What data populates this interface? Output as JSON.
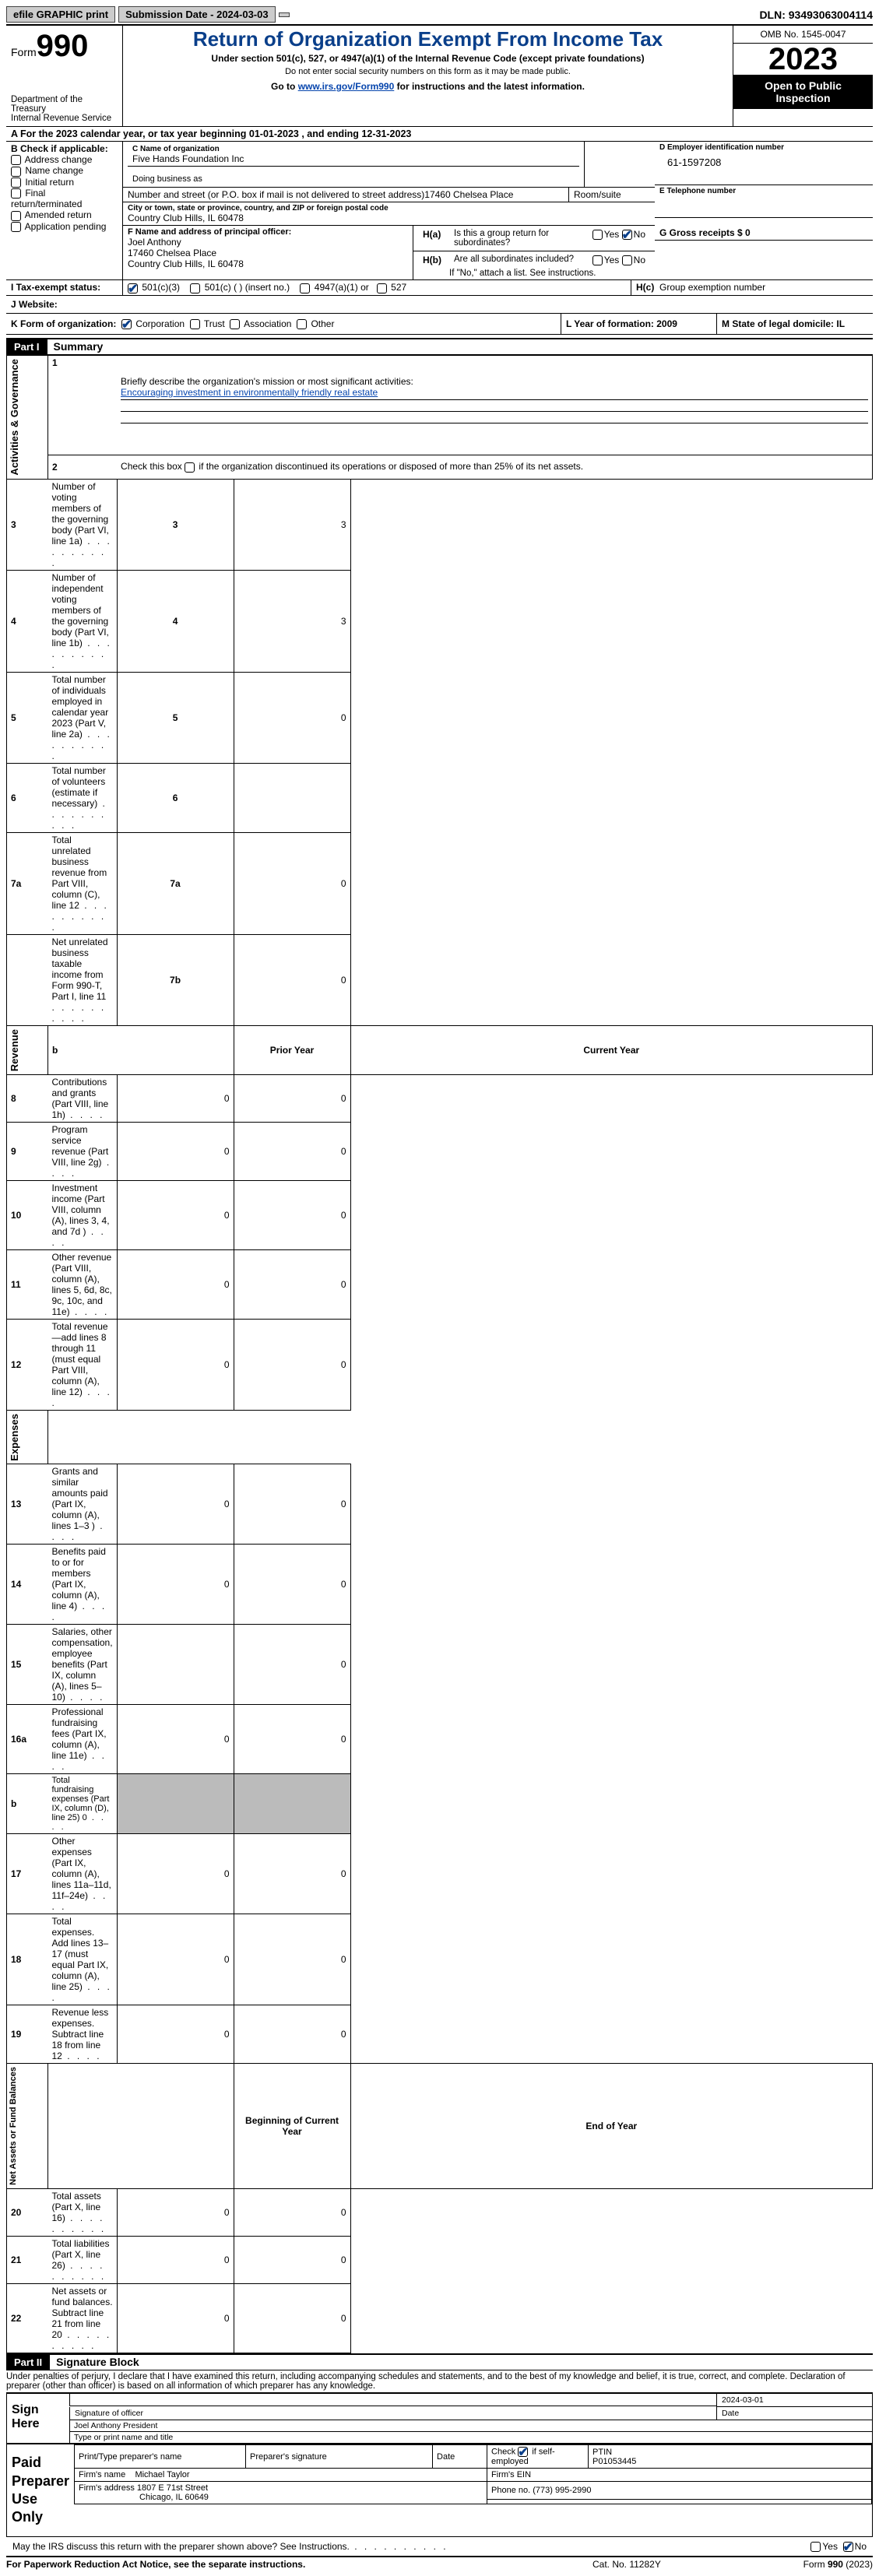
{
  "topbar": {
    "efile": "efile GRAPHIC print",
    "submission": "Submission Date - 2024-03-03",
    "dln": "DLN: 93493063004114"
  },
  "header": {
    "form_label": "Form",
    "form_no": "990",
    "dept": "Department of the Treasury",
    "irs": "Internal Revenue Service",
    "title": "Return of Organization Exempt From Income Tax",
    "subtitle": "Under section 501(c), 527, or 4947(a)(1) of the Internal Revenue Code (except private foundations)",
    "note1": "Do not enter social security numbers on this form as it may be made public.",
    "note2_pre": "Go to ",
    "note2_link": "www.irs.gov/Form990",
    "note2_post": " for instructions and the latest information.",
    "omb": "OMB No. 1545-0047",
    "year": "2023",
    "open": "Open to Public Inspection"
  },
  "rowA": {
    "prefix": "A For the 2023 calendar year, or tax year beginning ",
    "begin": "01-01-2023",
    "mid": "   , and ending ",
    "end": "12-31-2023"
  },
  "B": {
    "title": "B Check if applicable:",
    "items": [
      "Address change",
      "Name change",
      "Initial return",
      "Final return/terminated",
      "Amended return",
      "Application pending"
    ]
  },
  "C": {
    "name_lbl": "C Name of organization",
    "name": "Five Hands Foundation Inc",
    "dba_lbl": "Doing business as",
    "addr_lbl": "Number and street (or P.O. box if mail is not delivered to street address)",
    "addr": "17460 Chelsea Place",
    "room_lbl": "Room/suite",
    "city_lbl": "City or town, state or province, country, and ZIP or foreign postal code",
    "city": "Country Club Hills, IL  60478"
  },
  "D": {
    "lbl": "D Employer identification number",
    "val": "61-1597208"
  },
  "E": {
    "lbl": "E Telephone number",
    "val": ""
  },
  "F": {
    "lbl": "F  Name and address of principal officer:",
    "name": "Joel Anthony",
    "addr1": "17460 Chelsea Place",
    "addr2": "Country Club Hills, IL  60478"
  },
  "G": {
    "lbl": "G Gross receipts $ 0"
  },
  "H": {
    "a_lbl": "H(a)  Is this a group return for subordinates?",
    "b_lbl": "H(b)  Are all subordinates included?",
    "b_note": "If \"No,\" attach a list. See instructions.",
    "c_lbl": "H(c)  Group exemption number"
  },
  "I": {
    "lbl": "I   Tax-exempt status:",
    "opts": [
      "501(c)(3)",
      "501(c) (  ) (insert no.)",
      "4947(a)(1) or",
      "527"
    ]
  },
  "J": {
    "lbl": "J   Website:"
  },
  "K": {
    "lbl": "K Form of organization:",
    "opts": [
      "Corporation",
      "Trust",
      "Association",
      "Other"
    ]
  },
  "L": {
    "lbl": "L Year of formation: 2009"
  },
  "M": {
    "lbl": "M State of legal domicile: IL"
  },
  "partI": {
    "hdr": "Part I",
    "title": "Summary"
  },
  "summary": {
    "s1_lbl": "Briefly describe the organization's mission or most significant activities:",
    "s1_val": "Encouraging investment in environmentally friendly real estate",
    "s2": "Check this box       if the organization discontinued its operations or disposed of more than 25% of its net assets.",
    "sections": {
      "gov": "Activities & Governance",
      "rev": "Revenue",
      "exp": "Expenses",
      "net": "Net Assets or Fund Balances"
    },
    "gov_rows": [
      {
        "n": "3",
        "t": "Number of voting members of the governing body (Part VI, line 1a)",
        "box": "3",
        "v": "3"
      },
      {
        "n": "4",
        "t": "Number of independent voting members of the governing body (Part VI, line 1b)",
        "box": "4",
        "v": "3"
      },
      {
        "n": "5",
        "t": "Total number of individuals employed in calendar year 2023 (Part V, line 2a)",
        "box": "5",
        "v": "0"
      },
      {
        "n": "6",
        "t": "Total number of volunteers (estimate if necessary)",
        "box": "6",
        "v": ""
      },
      {
        "n": "7a",
        "t": "Total unrelated business revenue from Part VIII, column (C), line 12",
        "box": "7a",
        "v": "0"
      },
      {
        "n": "",
        "t": "Net unrelated business taxable income from Form 990-T, Part I, line 11",
        "box": "7b",
        "v": "0"
      }
    ],
    "py_hdr": "Prior Year",
    "cy_hdr": "Current Year",
    "by_hdr": "Beginning of Current Year",
    "ey_hdr": "End of Year",
    "rev_rows": [
      {
        "n": "8",
        "t": "Contributions and grants (Part VIII, line 1h)",
        "py": "0",
        "cy": "0"
      },
      {
        "n": "9",
        "t": "Program service revenue (Part VIII, line 2g)",
        "py": "0",
        "cy": "0"
      },
      {
        "n": "10",
        "t": "Investment income (Part VIII, column (A), lines 3, 4, and 7d )",
        "py": "0",
        "cy": "0"
      },
      {
        "n": "11",
        "t": "Other revenue (Part VIII, column (A), lines 5, 6d, 8c, 9c, 10c, and 11e)",
        "py": "0",
        "cy": "0"
      },
      {
        "n": "12",
        "t": "Total revenue—add lines 8 through 11 (must equal Part VIII, column (A), line 12)",
        "py": "0",
        "cy": "0"
      }
    ],
    "exp_rows": [
      {
        "n": "13",
        "t": "Grants and similar amounts paid (Part IX, column (A), lines 1–3 )",
        "py": "0",
        "cy": "0"
      },
      {
        "n": "14",
        "t": "Benefits paid to or for members (Part IX, column (A), line 4)",
        "py": "0",
        "cy": "0"
      },
      {
        "n": "15",
        "t": "Salaries, other compensation, employee benefits (Part IX, column (A), lines 5–10)",
        "py": "",
        "cy": "0"
      },
      {
        "n": "16a",
        "t": "Professional fundraising fees (Part IX, column (A), line 11e)",
        "py": "0",
        "cy": "0"
      },
      {
        "n": "b",
        "t": "Total fundraising expenses (Part IX, column (D), line 25) 0",
        "py": "SHADE",
        "cy": "SHADE"
      },
      {
        "n": "17",
        "t": "Other expenses (Part IX, column (A), lines 11a–11d, 11f–24e)",
        "py": "0",
        "cy": "0"
      },
      {
        "n": "18",
        "t": "Total expenses. Add lines 13–17 (must equal Part IX, column (A), line 25)",
        "py": "0",
        "cy": "0"
      },
      {
        "n": "19",
        "t": "Revenue less expenses. Subtract line 18 from line 12",
        "py": "0",
        "cy": "0"
      }
    ],
    "net_rows": [
      {
        "n": "20",
        "t": "Total assets (Part X, line 16)",
        "py": "0",
        "cy": "0"
      },
      {
        "n": "21",
        "t": "Total liabilities (Part X, line 26)",
        "py": "0",
        "cy": "0"
      },
      {
        "n": "22",
        "t": "Net assets or fund balances. Subtract line 21 from line 20",
        "py": "0",
        "cy": "0"
      }
    ]
  },
  "partII": {
    "hdr": "Part II",
    "title": "Signature Block"
  },
  "penalties": "Under penalties of perjury, I declare that I have examined this return, including accompanying schedules and statements, and to the best of my knowledge and belief, it is true, correct, and complete. Declaration of preparer (other than officer) is based on all information of which preparer has any knowledge.",
  "sign": {
    "here": "Sign Here",
    "sig_lbl": "Signature of officer",
    "date_lbl": "Date",
    "date": "2024-03-01",
    "name": "Joel Anthony  President",
    "type_lbl": "Type or print name and title"
  },
  "paid": {
    "lbl": "Paid Preparer Use Only",
    "c1": "Print/Type preparer's name",
    "c2": "Preparer's signature",
    "c3": "Date",
    "c4": "Check         if self-employed",
    "c5": "PTIN",
    "ptin": "P01053445",
    "firm_lbl": "Firm's name",
    "firm": "Michael Taylor",
    "ein_lbl": "Firm's EIN",
    "addr_lbl": "Firm's address",
    "addr1": "1807 E 71st Street",
    "addr2": "Chicago, IL  60649",
    "phone_lbl": "Phone no.",
    "phone": "(773) 995-2990"
  },
  "discuss": "May the IRS discuss this return with the preparer shown above? See Instructions.",
  "footer": {
    "l": "For Paperwork Reduction Act Notice, see the separate instructions.",
    "m": "Cat. No. 11282Y",
    "r": "Form 990 (2023)"
  }
}
